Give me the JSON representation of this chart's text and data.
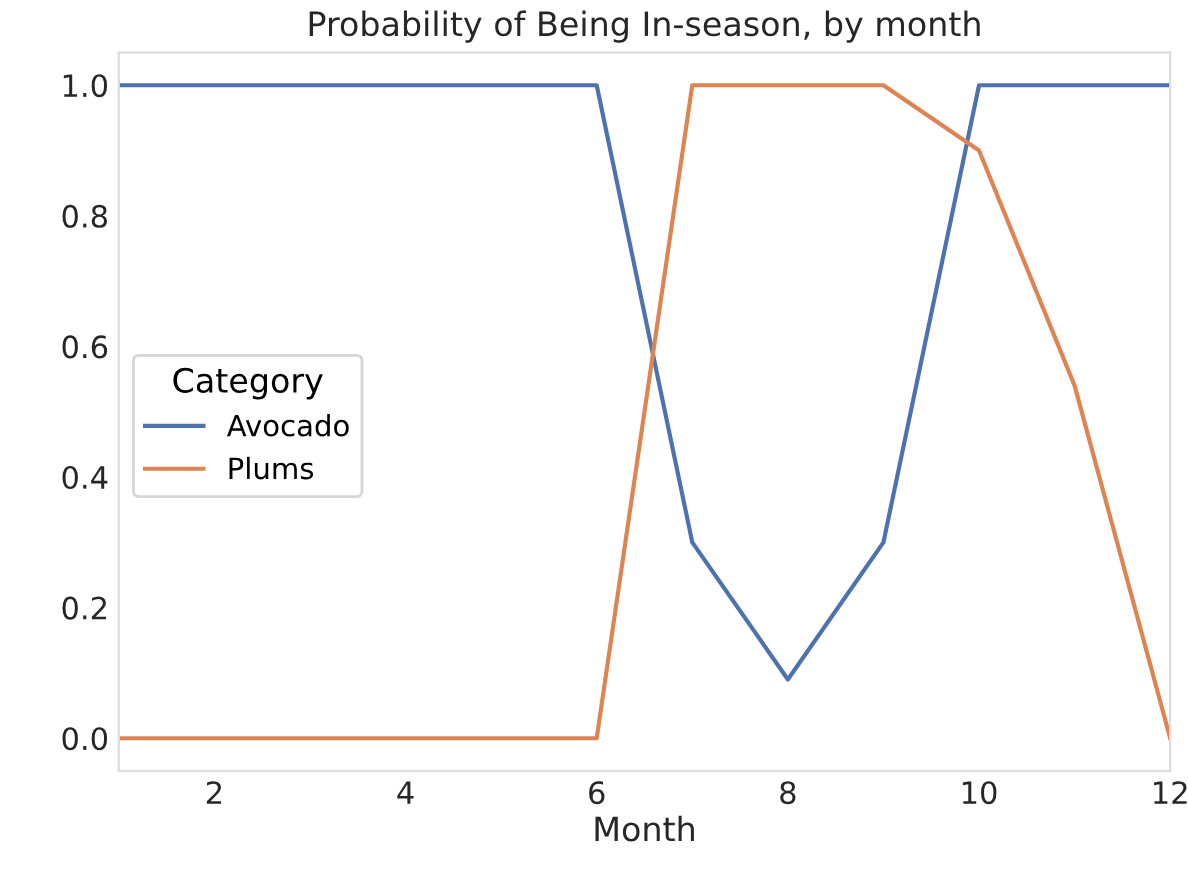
{
  "chart_data": {
    "type": "line",
    "title": "Probability of Being In-season, by month",
    "xlabel": "Month",
    "legend_title": "Category",
    "legend": "left",
    "grid": false,
    "x": [
      1,
      2,
      3,
      4,
      5,
      6,
      7,
      8,
      9,
      10,
      11,
      12
    ],
    "xlim": [
      1,
      12
    ],
    "xticks": [
      2,
      4,
      6,
      8,
      10,
      12
    ],
    "ylim": [
      -0.05,
      1.05
    ],
    "yticks": [
      {
        "value": 0,
        "label": "0.0"
      },
      {
        "value": 0.2,
        "label": "0.2"
      },
      {
        "value": 0.4,
        "label": "0.4"
      },
      {
        "value": 0.6,
        "label": "0.6"
      },
      {
        "value": 0.8,
        "label": "0.8"
      },
      {
        "value": 1,
        "label": "1.0"
      }
    ],
    "series": [
      {
        "name": "Avocado",
        "color": "#4c72b0",
        "values": [
          1,
          1,
          1,
          1,
          1,
          1,
          0.3,
          0.09,
          0.3,
          1,
          1,
          1
        ]
      },
      {
        "name": "Plums",
        "color": "#dd8452",
        "values": [
          0,
          0,
          0,
          0,
          0,
          0,
          1,
          1,
          1,
          0.9,
          0.54,
          0
        ]
      }
    ]
  }
}
